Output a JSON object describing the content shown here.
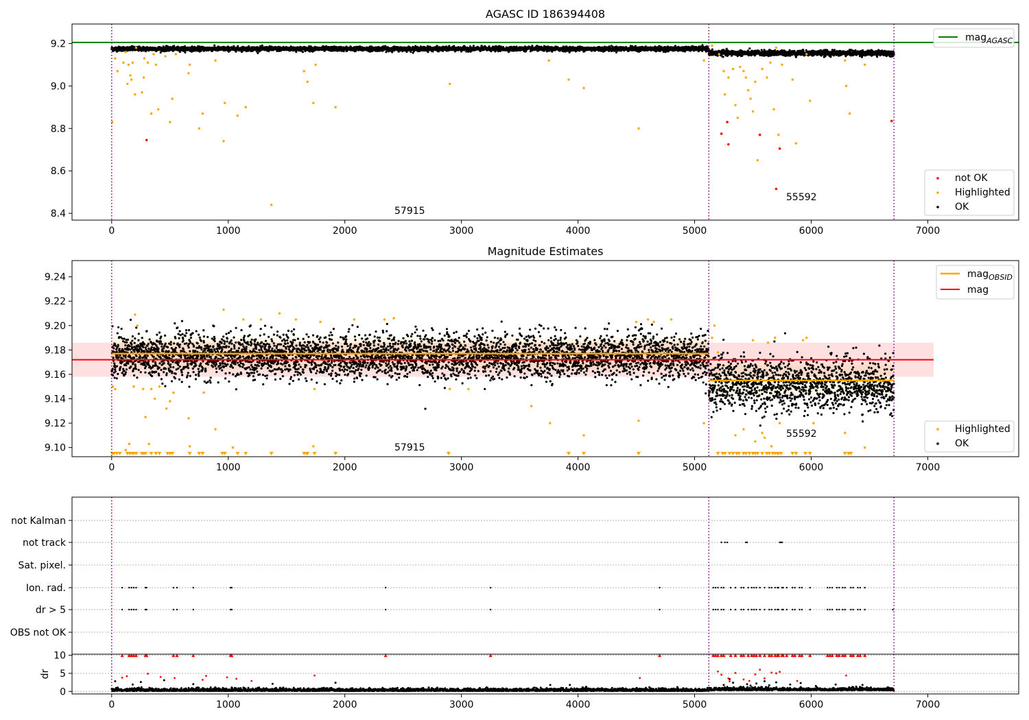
{
  "chart_data": [
    {
      "type": "scatter",
      "title": "AGASC ID 186394408",
      "xlim": [
        -340,
        7780
      ],
      "ylim": [
        8.368,
        9.292
      ],
      "xticks": [
        0,
        1000,
        2000,
        3000,
        4000,
        5000,
        6000,
        7000
      ],
      "yticks": [
        8.4,
        8.6,
        8.8,
        9.0,
        9.2
      ],
      "ytick_labels": [
        "8.4",
        "8.6",
        "8.8",
        "9.0",
        "9.2"
      ],
      "vlines": [
        0,
        5122,
        6710
      ],
      "hline": {
        "name": "mag_AGASC",
        "y": 9.205,
        "color": "#008000"
      },
      "annotations": [
        {
          "text": "57915",
          "x": 2540,
          "y": 8.42
        },
        {
          "text": "55592",
          "x": 5910,
          "y": 8.465
        }
      ],
      "segments": [
        {
          "x0": 0,
          "x1": 5122,
          "center": 9.175,
          "spread": 0.009
        },
        {
          "x0": 5122,
          "x1": 6710,
          "center": 9.155,
          "spread": 0.011
        }
      ],
      "legend": {
        "placement": "bottom-right",
        "entries": [
          {
            "label": "not OK",
            "color": "#ff0000"
          },
          {
            "label": "Highlighted",
            "color": "#ffa500"
          },
          {
            "label": "OK",
            "color": "#000000"
          }
        ]
      },
      "top_legend": {
        "placement": "top-right",
        "entries": [
          {
            "label": "mag",
            "sub": "AGASC",
            "color": "#008000"
          }
        ]
      },
      "highlighted_points": [
        [
          5,
          8.83
        ],
        [
          30,
          9.13
        ],
        [
          50,
          9.07
        ],
        [
          100,
          9.11
        ],
        [
          120,
          9.16
        ],
        [
          135,
          9.01
        ],
        [
          145,
          9.1
        ],
        [
          160,
          9.05
        ],
        [
          170,
          9.03
        ],
        [
          180,
          9.11
        ],
        [
          200,
          8.96
        ],
        [
          210,
          9.18
        ],
        [
          260,
          8.97
        ],
        [
          275,
          9.04
        ],
        [
          280,
          9.13
        ],
        [
          310,
          9.11
        ],
        [
          340,
          8.87
        ],
        [
          360,
          9.15
        ],
        [
          380,
          9.1
        ],
        [
          400,
          8.89
        ],
        [
          460,
          9.14
        ],
        [
          500,
          8.83
        ],
        [
          520,
          8.94
        ],
        [
          550,
          9.15
        ],
        [
          660,
          9.06
        ],
        [
          670,
          9.1
        ],
        [
          750,
          8.8
        ],
        [
          780,
          8.87
        ],
        [
          890,
          9.12
        ],
        [
          960,
          8.74
        ],
        [
          970,
          8.92
        ],
        [
          1080,
          8.86
        ],
        [
          1150,
          8.9
        ],
        [
          1370,
          8.44
        ],
        [
          1650,
          9.07
        ],
        [
          1680,
          9.02
        ],
        [
          1730,
          8.92
        ],
        [
          1750,
          9.1
        ],
        [
          1920,
          8.9
        ],
        [
          2900,
          9.01
        ],
        [
          3750,
          9.12
        ],
        [
          3920,
          9.03
        ],
        [
          4050,
          8.99
        ],
        [
          4520,
          8.8
        ],
        [
          5080,
          9.12
        ],
        [
          5150,
          9.19
        ],
        [
          5210,
          9.15
        ],
        [
          5250,
          9.07
        ],
        [
          5260,
          8.96
        ],
        [
          5290,
          9.04
        ],
        [
          5330,
          9.08
        ],
        [
          5350,
          8.91
        ],
        [
          5370,
          8.85
        ],
        [
          5390,
          9.09
        ],
        [
          5420,
          9.07
        ],
        [
          5440,
          9.04
        ],
        [
          5460,
          8.98
        ],
        [
          5480,
          8.94
        ],
        [
          5500,
          8.88
        ],
        [
          5520,
          9.02
        ],
        [
          5540,
          8.65
        ],
        [
          5580,
          9.08
        ],
        [
          5620,
          9.04
        ],
        [
          5650,
          9.11
        ],
        [
          5680,
          8.89
        ],
        [
          5700,
          9.18
        ],
        [
          5720,
          8.77
        ],
        [
          5750,
          9.1
        ],
        [
          5840,
          9.03
        ],
        [
          5870,
          8.73
        ],
        [
          5960,
          9.15
        ],
        [
          5990,
          8.93
        ],
        [
          6290,
          9.12
        ],
        [
          6300,
          9.0
        ],
        [
          6330,
          8.87
        ],
        [
          6460,
          9.1
        ]
      ],
      "not_ok_points": [
        [
          300,
          8.745
        ],
        [
          5230,
          8.775
        ],
        [
          5280,
          8.83
        ],
        [
          5290,
          8.725
        ],
        [
          5560,
          8.77
        ],
        [
          5700,
          8.515
        ],
        [
          5730,
          8.705
        ],
        [
          6690,
          8.835
        ]
      ]
    },
    {
      "type": "scatter",
      "title": "Magnitude Estimates",
      "xlim": [
        -340,
        7780
      ],
      "ylim": [
        9.0925,
        9.2533
      ],
      "xticks": [
        0,
        1000,
        2000,
        3000,
        4000,
        5000,
        6000,
        7000
      ],
      "yticks": [
        9.1,
        9.12,
        9.14,
        9.16,
        9.18,
        9.2,
        9.22,
        9.24
      ],
      "ytick_labels": [
        "9.10",
        "9.12",
        "9.14",
        "9.16",
        "9.18",
        "9.20",
        "9.22",
        "9.24"
      ],
      "vlines": [
        0,
        5122,
        6710
      ],
      "annotations": [
        {
          "text": "57915",
          "x": 2540,
          "y": 9.096
        },
        {
          "text": "55592",
          "x": 5910,
          "y": 9.108
        }
      ],
      "mag_line": {
        "y": 9.172,
        "x0": -340,
        "x1": 7050,
        "band": [
          9.158,
          9.186
        ],
        "color": "#ff0000"
      },
      "obsid_lines": [
        {
          "x0": 0,
          "x1": 5122,
          "y": 9.177
        },
        {
          "x0": 5122,
          "x1": 6710,
          "y": 9.155
        }
      ],
      "segments": [
        {
          "x0": 0,
          "x1": 5122,
          "center": 9.175,
          "spread": 0.009
        },
        {
          "x0": 5122,
          "x1": 6710,
          "center": 9.152,
          "spread": 0.011
        }
      ],
      "legend": {
        "placement": "bottom-right",
        "entries": [
          {
            "label": "Highlighted",
            "color": "#ffa500"
          },
          {
            "label": "OK",
            "color": "#000000"
          }
        ]
      },
      "top_legend": {
        "placement": "top-right",
        "entries": [
          {
            "label": "mag",
            "sub": "OBSID",
            "color": "#ffa500"
          },
          {
            "label": "mag",
            "sub": "",
            "color": "#ff0000"
          }
        ]
      },
      "highlighted_points": [
        [
          10,
          9.15
        ],
        [
          30,
          9.148
        ],
        [
          120,
          9.098
        ],
        [
          150,
          9.103
        ],
        [
          190,
          9.15
        ],
        [
          200,
          9.209
        ],
        [
          220,
          9.2
        ],
        [
          270,
          9.148
        ],
        [
          290,
          9.125
        ],
        [
          320,
          9.103
        ],
        [
          340,
          9.148
        ],
        [
          370,
          9.14
        ],
        [
          410,
          9.15
        ],
        [
          470,
          9.132
        ],
        [
          500,
          9.138
        ],
        [
          530,
          9.145
        ],
        [
          660,
          9.124
        ],
        [
          670,
          9.101
        ],
        [
          790,
          9.145
        ],
        [
          890,
          9.115
        ],
        [
          960,
          9.213
        ],
        [
          1040,
          9.1
        ],
        [
          1130,
          9.205
        ],
        [
          1280,
          9.205
        ],
        [
          1440,
          9.21
        ],
        [
          1580,
          9.205
        ],
        [
          1730,
          9.101
        ],
        [
          1740,
          9.148
        ],
        [
          1790,
          9.203
        ],
        [
          2080,
          9.205
        ],
        [
          2340,
          9.205
        ],
        [
          2420,
          9.206
        ],
        [
          2900,
          9.148
        ],
        [
          3060,
          9.148
        ],
        [
          3600,
          9.134
        ],
        [
          3760,
          9.12
        ],
        [
          4050,
          9.11
        ],
        [
          4500,
          9.203
        ],
        [
          4520,
          9.122
        ],
        [
          4600,
          9.205
        ],
        [
          4650,
          9.203
        ],
        [
          4800,
          9.205
        ],
        [
          5080,
          9.12
        ],
        [
          5150,
          9.19
        ],
        [
          5170,
          9.2
        ],
        [
          5200,
          9.178
        ],
        [
          5350,
          9.11
        ],
        [
          5420,
          9.115
        ],
        [
          5500,
          9.188
        ],
        [
          5520,
          9.105
        ],
        [
          5580,
          9.112
        ],
        [
          5600,
          9.108
        ],
        [
          5630,
          9.186
        ],
        [
          5660,
          9.101
        ],
        [
          5690,
          9.19
        ],
        [
          5730,
          9.12
        ],
        [
          5930,
          9.188
        ],
        [
          5960,
          9.19
        ],
        [
          6020,
          9.12
        ],
        [
          6290,
          9.112
        ],
        [
          6460,
          9.1
        ]
      ],
      "triangles_x": [
        5,
        20,
        45,
        70,
        135,
        155,
        175,
        190,
        210,
        260,
        275,
        290,
        340,
        380,
        410,
        480,
        500,
        520,
        670,
        750,
        780,
        950,
        970,
        1080,
        1150,
        1370,
        1650,
        1670,
        1680,
        1740,
        1920,
        2890,
        3920,
        4050,
        4520,
        5200,
        5240,
        5260,
        5300,
        5330,
        5360,
        5380,
        5420,
        5440,
        5470,
        5500,
        5520,
        5540,
        5580,
        5620,
        5640,
        5670,
        5690,
        5710,
        5720,
        5740,
        5840,
        5870,
        5950,
        5990,
        6290,
        6320,
        6340
      ]
    },
    {
      "type": "scatter",
      "title": "",
      "xlim": [
        -340,
        7780
      ],
      "xticks": [
        0,
        1000,
        2000,
        3000,
        4000,
        5000,
        6000,
        7000
      ],
      "vlines": [
        0,
        5122,
        6710
      ],
      "flag_rows": [
        "not Kalman",
        "not track",
        "Sat. pixel.",
        "Ion. rad.",
        "dr > 5",
        "OBS not OK"
      ],
      "flag_points": {
        "not Kalman": [],
        "not track": [
          5230,
          5260,
          5280,
          5440,
          5450,
          5730,
          5740,
          5750
        ],
        "Sat. pixel.": [],
        "Ion. rad.": [
          90,
          150,
          170,
          190,
          210,
          290,
          300,
          530,
          560,
          700,
          1020,
          1030,
          2350,
          3250,
          4700,
          5160,
          5180,
          5200,
          5230,
          5250,
          5310,
          5350,
          5400,
          5420,
          5460,
          5490,
          5510,
          5530,
          5560,
          5600,
          5640,
          5660,
          5690,
          5710,
          5720,
          5750,
          5760,
          5790,
          5840,
          5860,
          5900,
          5920,
          5990,
          6140,
          6160,
          6180,
          6220,
          6240,
          6270,
          6290,
          6340,
          6360,
          6400,
          6420,
          6460
        ],
        "dr > 5": [
          90,
          150,
          170,
          190,
          210,
          290,
          300,
          530,
          560,
          700,
          1020,
          1030,
          2350,
          3250,
          4700,
          5160,
          5180,
          5200,
          5230,
          5250,
          5310,
          5350,
          5400,
          5420,
          5460,
          5490,
          5510,
          5530,
          5560,
          5600,
          5640,
          5660,
          5690,
          5710,
          5720,
          5750,
          5760,
          5790,
          5840,
          5860,
          5900,
          5920,
          5990,
          6140,
          6160,
          6180,
          6220,
          6240,
          6270,
          6290,
          6340,
          6360,
          6400,
          6420,
          6460,
          6700
        ],
        "OBS not OK": []
      },
      "dr_panel": {
        "ylabel": "dr",
        "ylim": [
          -0.7,
          10.3
        ],
        "yticks": [
          0,
          5,
          10
        ],
        "ytick_labels": [
          "0",
          "5",
          "10"
        ],
        "clipped_x": [
          90,
          150,
          170,
          190,
          210,
          290,
          300,
          530,
          560,
          700,
          1020,
          1030,
          2350,
          3250,
          4700,
          5160,
          5180,
          5200,
          5230,
          5250,
          5310,
          5350,
          5400,
          5420,
          5460,
          5490,
          5510,
          5530,
          5560,
          5600,
          5640,
          5660,
          5690,
          5710,
          5720,
          5750,
          5760,
          5790,
          5840,
          5860,
          5900,
          5920,
          5990,
          6140,
          6160,
          6180,
          6220,
          6240,
          6270,
          6290,
          6340,
          6360,
          6400,
          6420,
          6460
        ],
        "red_points": [
          [
            90,
            3.8
          ],
          [
            130,
            4.2
          ],
          [
            310,
            4.9
          ],
          [
            420,
            4.0
          ],
          [
            540,
            3.7
          ],
          [
            780,
            3.2
          ],
          [
            810,
            4.3
          ],
          [
            990,
            3.9
          ],
          [
            1070,
            3.5
          ],
          [
            1200,
            2.9
          ],
          [
            1740,
            4.4
          ],
          [
            4530,
            3.7
          ],
          [
            5200,
            5.5
          ],
          [
            5230,
            4.6
          ],
          [
            5290,
            3.6
          ],
          [
            5300,
            2.8
          ],
          [
            5350,
            5.1
          ],
          [
            5420,
            3.3
          ],
          [
            5470,
            2.9
          ],
          [
            5520,
            4.7
          ],
          [
            5560,
            6.0
          ],
          [
            5600,
            3.6
          ],
          [
            5660,
            5.2
          ],
          [
            5700,
            5.0
          ],
          [
            5730,
            5.4
          ],
          [
            5880,
            2.9
          ],
          [
            6300,
            4.4
          ]
        ],
        "black_outliers": [
          [
            30,
            2.8
          ],
          [
            180,
            1.9
          ],
          [
            250,
            2.6
          ],
          [
            450,
            3.1
          ],
          [
            700,
            2.0
          ],
          [
            1380,
            2.1
          ],
          [
            1920,
            2.4
          ],
          [
            3930,
            1.8
          ],
          [
            4070,
            1.3
          ],
          [
            5250,
            1.8
          ],
          [
            5300,
            3.4
          ],
          [
            5330,
            2.4
          ],
          [
            5400,
            1.2
          ],
          [
            5450,
            2.0
          ],
          [
            5480,
            1.6
          ],
          [
            5530,
            2.2
          ],
          [
            5600,
            2.8
          ],
          [
            5640,
            1.7
          ],
          [
            5700,
            2.5
          ],
          [
            5820,
            1.9
          ],
          [
            5910,
            2.3
          ],
          [
            6040,
            1.5
          ],
          [
            6210,
            1.9
          ],
          [
            6440,
            1.8
          ]
        ]
      }
    }
  ]
}
